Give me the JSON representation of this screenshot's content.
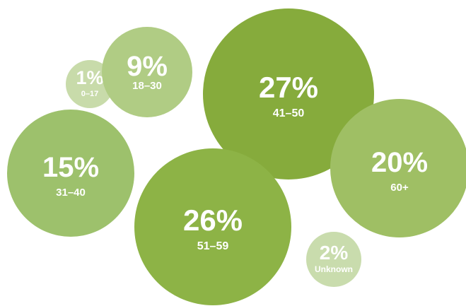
{
  "chart_data": {
    "type": "bubble",
    "title": "",
    "xlabel": "",
    "ylabel": "",
    "grid": false,
    "legend": "none",
    "unit": "%",
    "categories": [
      "0–17",
      "18–30",
      "31–40",
      "41–50",
      "51–59",
      "60+",
      "Unknown"
    ],
    "values": [
      1,
      9,
      15,
      27,
      26,
      20,
      2
    ],
    "labels": [
      "1%",
      "9%",
      "15%",
      "27%",
      "26%",
      "20%",
      "2%"
    ],
    "colors": [
      "#c8dbaa",
      "#b0cc84",
      "#9dc16c",
      "#86ab3c",
      "#8db346",
      "#9fbf64",
      "#c9dcad"
    ]
  }
}
